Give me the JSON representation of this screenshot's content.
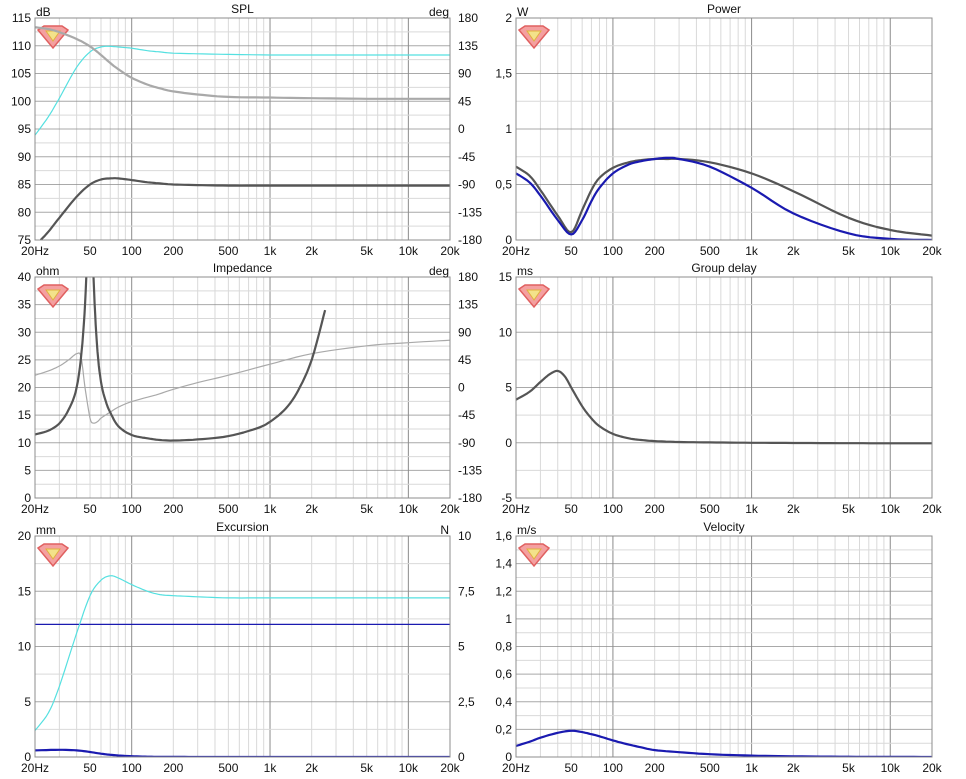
{
  "colors": {
    "grid_major": "#8c8c8c",
    "grid_minor": "#d9d9d9",
    "dark": "#555555",
    "light": "#a9a9a9",
    "cyan": "#55e0e0",
    "blue": "#1a1ab0",
    "logo_red": "#e06060"
  },
  "freq_ticks": [
    "20Hz",
    "50",
    "100",
    "200",
    "500",
    "1k",
    "2k",
    "5k",
    "10k",
    "20k"
  ],
  "freq_values": [
    20,
    50,
    100,
    200,
    500,
    1000,
    2000,
    5000,
    10000,
    20000
  ],
  "logo_icon": "speaker-gem-logo",
  "chart_data": [
    {
      "id": "spl",
      "type": "line",
      "title": "SPL",
      "ylabel": "dB",
      "ylim": [
        75,
        115
      ],
      "yticks": [
        "75",
        "80",
        "85",
        "90",
        "95",
        "100",
        "105",
        "110",
        "115"
      ],
      "y2label": "deg",
      "y2lim": [
        -180,
        180
      ],
      "y2ticks": [
        "-180",
        "-135",
        "-90",
        "-45",
        "0",
        "45",
        "90",
        "135",
        "180"
      ],
      "xlim": [
        20,
        20000
      ],
      "xscale": "log",
      "series": [
        {
          "color": "cyan",
          "width": 1.2,
          "axis": "y2",
          "x": [
            20,
            25,
            30,
            40,
            50,
            60,
            70,
            80,
            100,
            130,
            160,
            200,
            300,
            500,
            1000,
            2000,
            5000,
            10000,
            20000
          ],
          "y": [
            -10,
            20,
            50,
            100,
            125,
            133,
            134,
            133,
            131,
            127,
            125,
            123,
            122,
            121,
            120,
            120,
            120,
            120,
            120
          ]
        },
        {
          "color": "light",
          "width": 2.2,
          "axis": "y2",
          "x": [
            20,
            25,
            30,
            40,
            50,
            60,
            70,
            80,
            100,
            130,
            160,
            200,
            300,
            500,
            1000,
            2000,
            5000,
            10000,
            20000
          ],
          "y": [
            165,
            162,
            157,
            146,
            134,
            120,
            107,
            97,
            83,
            72,
            66,
            61,
            56,
            52,
            51,
            50,
            49,
            49,
            49
          ]
        },
        {
          "color": "dark",
          "width": 2.2,
          "axis": "y",
          "x": [
            22,
            25,
            30,
            40,
            50,
            60,
            70,
            80,
            100,
            130,
            160,
            200,
            300,
            500,
            1000,
            2000,
            5000,
            10000,
            20000
          ],
          "y": [
            75,
            76.5,
            79,
            82.8,
            85,
            85.9,
            86.1,
            86.1,
            85.8,
            85.4,
            85.2,
            85,
            84.9,
            84.8,
            84.8,
            84.8,
            84.8,
            84.8,
            84.8
          ]
        }
      ]
    },
    {
      "id": "power",
      "type": "line",
      "title": "Power",
      "ylabel": "W",
      "ylim": [
        0,
        2
      ],
      "yticks": [
        "0",
        "0,5",
        "1",
        "1,5",
        "2"
      ],
      "xlim": [
        20,
        20000
      ],
      "xscale": "log",
      "series": [
        {
          "color": "dark",
          "width": 2.2,
          "axis": "y",
          "x": [
            20,
            25,
            30,
            40,
            50,
            60,
            70,
            80,
            100,
            130,
            160,
            200,
            250,
            300,
            500,
            1000,
            2000,
            5000,
            10000,
            20000
          ],
          "y": [
            0.66,
            0.58,
            0.45,
            0.22,
            0.07,
            0.27,
            0.45,
            0.56,
            0.65,
            0.7,
            0.72,
            0.73,
            0.73,
            0.73,
            0.7,
            0.6,
            0.44,
            0.2,
            0.09,
            0.04
          ]
        },
        {
          "color": "blue",
          "width": 2.2,
          "axis": "y",
          "x": [
            20,
            25,
            30,
            40,
            50,
            60,
            70,
            80,
            100,
            130,
            160,
            200,
            250,
            300,
            500,
            1000,
            2000,
            5000,
            10000,
            20000
          ],
          "y": [
            0.6,
            0.52,
            0.4,
            0.18,
            0.05,
            0.18,
            0.35,
            0.47,
            0.6,
            0.68,
            0.71,
            0.73,
            0.74,
            0.73,
            0.66,
            0.47,
            0.24,
            0.06,
            0.01,
            0.0
          ]
        }
      ]
    },
    {
      "id": "impedance",
      "type": "line",
      "title": "Impedance",
      "ylabel": "ohm",
      "ylim": [
        0,
        40
      ],
      "yticks": [
        "0",
        "5",
        "10",
        "15",
        "20",
        "25",
        "30",
        "35",
        "40"
      ],
      "y2label": "deg",
      "y2lim": [
        -180,
        180
      ],
      "y2ticks": [
        "-180",
        "-135",
        "-90",
        "-45",
        "0",
        "45",
        "90",
        "135",
        "180"
      ],
      "xlim": [
        20,
        20000
      ],
      "xscale": "log",
      "series": [
        {
          "color": "light",
          "width": 1.2,
          "axis": "y2",
          "x": [
            20,
            25,
            30,
            35,
            40,
            43,
            46,
            50,
            53,
            57,
            60,
            70,
            80,
            100,
            150,
            200,
            300,
            500,
            1000,
            2000,
            5000,
            10000,
            20000
          ],
          "y": [
            20,
            27,
            35,
            45,
            55,
            50,
            0,
            -50,
            -58,
            -55,
            -50,
            -40,
            -32,
            -23,
            -12,
            -3,
            8,
            20,
            38,
            55,
            68,
            73,
            77
          ]
        },
        {
          "color": "dark",
          "width": 2.2,
          "axis": "y",
          "x": [
            20,
            25,
            30,
            35,
            40,
            44,
            47,
            50,
            53,
            56,
            60,
            65,
            70,
            80,
            100,
            130,
            160,
            200,
            300,
            500,
            800,
            1000,
            1300,
            1600,
            2000,
            2500
          ],
          "y": [
            11.5,
            12.2,
            13.5,
            16,
            20,
            28,
            40,
            60,
            40,
            28,
            21,
            17.5,
            15.5,
            13,
            11.4,
            10.8,
            10.5,
            10.4,
            10.6,
            11.2,
            12.6,
            13.8,
            16.2,
            19.5,
            25,
            34
          ]
        }
      ]
    },
    {
      "id": "group-delay",
      "type": "line",
      "title": "Group delay",
      "ylabel": "ms",
      "ylim": [
        -5,
        15
      ],
      "yticks": [
        "-5",
        "0",
        "5",
        "10",
        "15"
      ],
      "xlim": [
        20,
        20000
      ],
      "xscale": "log",
      "series": [
        {
          "color": "dark",
          "width": 2.2,
          "axis": "y",
          "x": [
            20,
            25,
            30,
            35,
            40,
            45,
            50,
            60,
            70,
            80,
            100,
            130,
            160,
            200,
            300,
            500,
            1000,
            2000,
            5000,
            10000,
            20000
          ],
          "y": [
            3.9,
            4.6,
            5.5,
            6.2,
            6.5,
            6.0,
            5.0,
            3.3,
            2.2,
            1.5,
            0.8,
            0.4,
            0.25,
            0.15,
            0.07,
            0.03,
            0.0,
            -0.02,
            -0.04,
            -0.05,
            -0.05
          ]
        }
      ]
    },
    {
      "id": "excursion",
      "type": "line",
      "title": "Excursion",
      "ylabel": "mm",
      "ylim": [
        0,
        20
      ],
      "yticks": [
        "0",
        "5",
        "10",
        "15",
        "20"
      ],
      "y2label": "N",
      "y2lim": [
        0,
        10
      ],
      "y2ticks": [
        "0",
        "2,5",
        "5",
        "7,5",
        "10"
      ],
      "xlim": [
        20,
        20000
      ],
      "xscale": "log",
      "series": [
        {
          "color": "blue",
          "width": 1.2,
          "axis": "y",
          "x": [
            20,
            20000
          ],
          "y": [
            12,
            12
          ]
        },
        {
          "color": "cyan",
          "width": 1.2,
          "axis": "y2",
          "x": [
            20,
            25,
            30,
            40,
            50,
            60,
            70,
            80,
            100,
            130,
            160,
            200,
            300,
            500,
            1000,
            2000,
            5000,
            10000,
            20000
          ],
          "y": [
            1.2,
            2.0,
            3.2,
            5.6,
            7.3,
            8.0,
            8.2,
            8.1,
            7.8,
            7.5,
            7.35,
            7.3,
            7.25,
            7.2,
            7.2,
            7.2,
            7.2,
            7.2,
            7.2
          ]
        },
        {
          "color": "blue",
          "width": 2.2,
          "axis": "y",
          "x": [
            20,
            30,
            40,
            50,
            60,
            70,
            80,
            100,
            130,
            160,
            200,
            300,
            500,
            1000,
            20000
          ],
          "y": [
            0.6,
            0.65,
            0.6,
            0.45,
            0.3,
            0.2,
            0.14,
            0.07,
            0.03,
            0.015,
            0.01,
            0.0,
            0.0,
            0.0,
            0.0
          ]
        }
      ]
    },
    {
      "id": "velocity",
      "type": "line",
      "title": "Velocity",
      "ylabel": "m/s",
      "ylim": [
        0,
        1.6
      ],
      "yticks": [
        "0",
        "0,2",
        "0,4",
        "0,6",
        "0,8",
        "1",
        "1,2",
        "1,4",
        "1,6"
      ],
      "xlim": [
        20,
        20000
      ],
      "xscale": "log",
      "series": [
        {
          "color": "blue",
          "width": 2.2,
          "axis": "y",
          "x": [
            20,
            25,
            30,
            40,
            50,
            60,
            70,
            80,
            100,
            130,
            160,
            200,
            300,
            500,
            1000,
            2000,
            5000,
            10000,
            20000
          ],
          "y": [
            0.08,
            0.11,
            0.14,
            0.175,
            0.19,
            0.18,
            0.165,
            0.15,
            0.12,
            0.09,
            0.07,
            0.05,
            0.035,
            0.02,
            0.01,
            0.005,
            0.002,
            0.001,
            0.0
          ]
        }
      ]
    }
  ]
}
